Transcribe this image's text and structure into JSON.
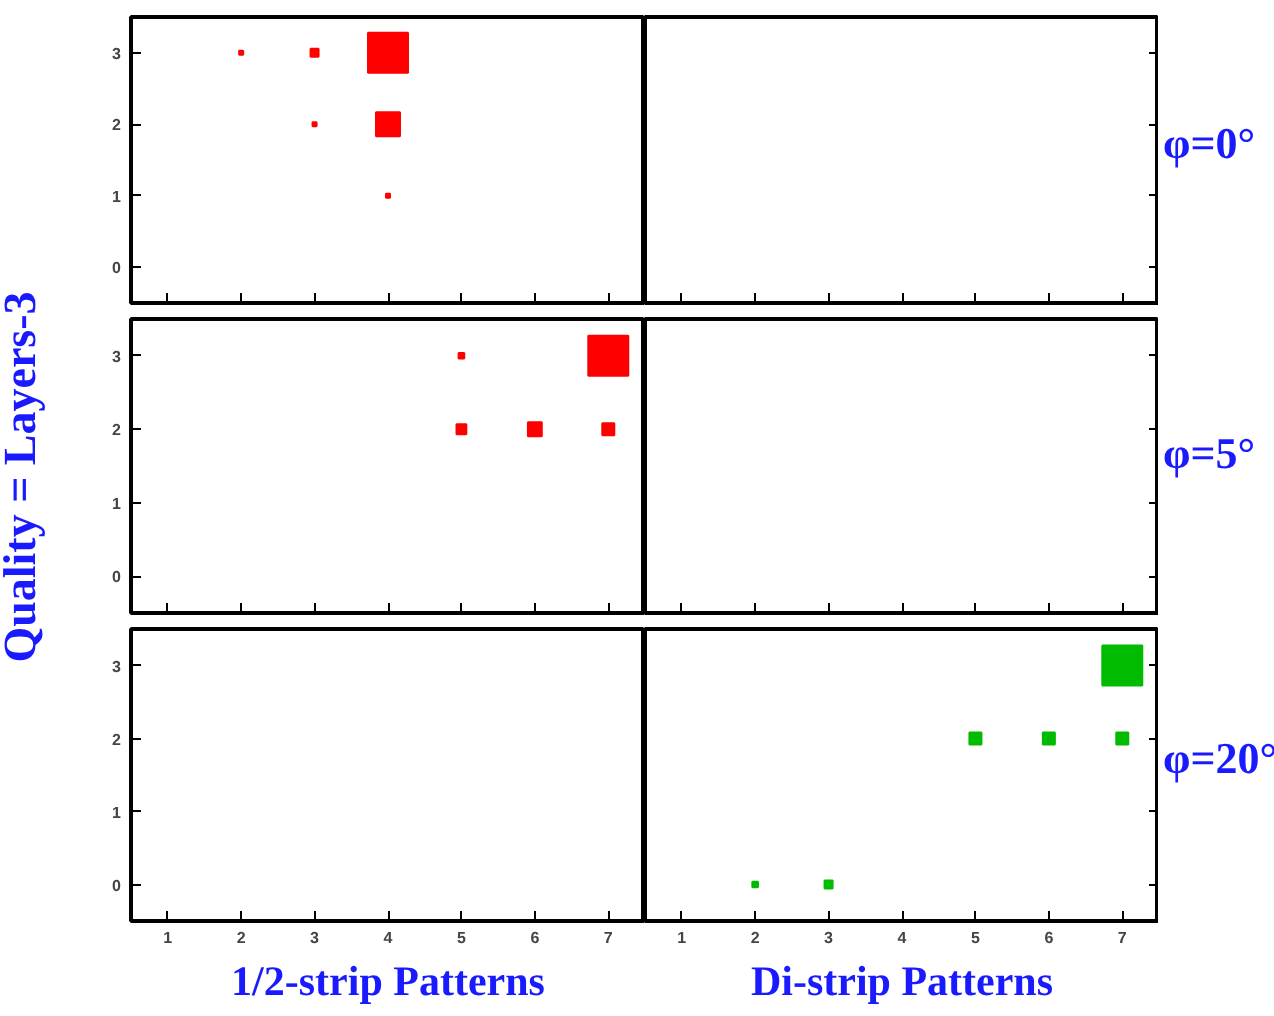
{
  "chart_data": [
    {
      "type": "bubble",
      "marker": "square",
      "grid": false,
      "xlim": [
        0.5,
        7.5
      ],
      "xticks": [
        1,
        2,
        3,
        4,
        5,
        6,
        7
      ],
      "ylim": [
        -0.5,
        3.5
      ],
      "yticks": [
        0,
        1,
        2,
        3
      ],
      "tick_labels": "y",
      "series": [
        {
          "color": "#ff0000",
          "x": [
            4,
            4,
            3,
            2,
            3,
            4
          ],
          "values": [
            3,
            2,
            3,
            3,
            2,
            1
          ],
          "sizes": [
            1,
            0.36,
            0.04,
            0.01,
            0.01,
            0.01
          ]
        }
      ]
    },
    {
      "type": "bubble",
      "marker": "square",
      "grid": false,
      "xlim": [
        0.5,
        7.5
      ],
      "xticks": [
        1,
        2,
        3,
        4,
        5,
        6,
        7
      ],
      "ylim": [
        -0.5,
        3.5
      ],
      "yticks": [
        0,
        1,
        2,
        3
      ],
      "tick_labels": false,
      "annotations": [
        "φ=0°"
      ]
    },
    {
      "type": "bubble",
      "marker": "square",
      "grid": false,
      "ylabel": "Quality = Layers-3",
      "xlim": [
        0.5,
        7.5
      ],
      "xticks": [
        1,
        2,
        3,
        4,
        5,
        6,
        7
      ],
      "ylim": [
        -0.5,
        3.5
      ],
      "yticks": [
        0,
        1,
        2,
        3
      ],
      "tick_labels": "y",
      "series": [
        {
          "color": "#ff0000",
          "x": [
            7,
            5,
            6,
            7,
            5
          ],
          "values": [
            3,
            2,
            2,
            2,
            3
          ],
          "sizes": [
            1,
            0.06,
            0.12,
            0.09,
            0.02
          ]
        }
      ]
    },
    {
      "type": "bubble",
      "marker": "square",
      "grid": false,
      "xlim": [
        0.5,
        7.5
      ],
      "xticks": [
        1,
        2,
        3,
        4,
        5,
        6,
        7
      ],
      "ylim": [
        -0.5,
        3.5
      ],
      "yticks": [
        0,
        1,
        2,
        3
      ],
      "tick_labels": false,
      "annotations": [
        "φ=5°"
      ]
    },
    {
      "type": "bubble",
      "marker": "square",
      "grid": false,
      "xlabel": "1/2-strip Patterns",
      "xlim": [
        0.5,
        7.5
      ],
      "xticks": [
        1,
        2,
        3,
        4,
        5,
        6,
        7
      ],
      "ylim": [
        -0.5,
        3.5
      ],
      "yticks": [
        0,
        1,
        2,
        3
      ]
    },
    {
      "type": "bubble",
      "marker": "square",
      "grid": false,
      "xlabel": "Di-strip Patterns",
      "xlim": [
        0.5,
        7.5
      ],
      "xticks": [
        1,
        2,
        3,
        4,
        5,
        6,
        7
      ],
      "ylim": [
        -0.5,
        3.5
      ],
      "yticks": [
        0,
        1,
        2,
        3
      ],
      "tick_labels": "x",
      "annotations": [
        "φ=20°"
      ],
      "series": [
        {
          "color": "#00bb00",
          "x": [
            7,
            5,
            6,
            7,
            3,
            2
          ],
          "values": [
            3,
            2,
            2,
            2,
            0,
            0
          ],
          "sizes": [
            1,
            0.09,
            0.09,
            0.09,
            0.04,
            0.02
          ]
        }
      ]
    }
  ]
}
